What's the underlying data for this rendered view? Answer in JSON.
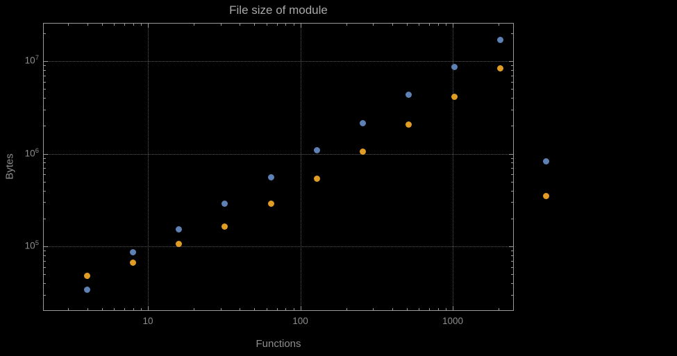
{
  "title": "File size of module",
  "colors": {
    "bg": "#000000",
    "title": "#a9a9a9",
    "axis-label": "#8e8e8e",
    "tick-label": "#8e8e8e",
    "frame": "#9b9b9b",
    "grid": "#5c5c5c",
    "series_blue": "#5E81B5",
    "series_orange": "#E19C24"
  },
  "axes": {
    "x": {
      "label": "Functions",
      "scale": "log",
      "ticks": [
        {
          "value": 10,
          "label": "10"
        },
        {
          "value": 100,
          "label": "100"
        },
        {
          "value": 1000,
          "label": "1000"
        }
      ]
    },
    "y": {
      "label": "Bytes",
      "scale": "log",
      "ticks": [
        {
          "value": 100000,
          "base": "10",
          "exp": "5"
        },
        {
          "value": 1000000,
          "base": "10",
          "exp": "6"
        },
        {
          "value": 10000000,
          "base": "10",
          "exp": "7"
        }
      ]
    }
  },
  "chart_data": {
    "type": "scatter",
    "title": "File size of module",
    "xlabel": "Functions",
    "ylabel": "Bytes",
    "x_scale": "log",
    "y_scale": "log",
    "xlim": [
      2.1,
      2500
    ],
    "ylim": [
      20000,
      26000000
    ],
    "grid": "dotted lines at decade values on both axes",
    "legend": "none",
    "series": [
      {
        "name": "series-blue",
        "color": "#5E81B5",
        "points": [
          [
            4,
            34000
          ],
          [
            8,
            86000
          ],
          [
            16,
            152000
          ],
          [
            32,
            290000
          ],
          [
            64,
            560000
          ],
          [
            128,
            1100000
          ],
          [
            256,
            2150000
          ],
          [
            512,
            4300000
          ],
          [
            1024,
            8700000
          ],
          [
            2048,
            17000000
          ],
          [
            4096,
            830000
          ]
        ]
      },
      {
        "name": "series-orange",
        "color": "#E19C24",
        "points": [
          [
            4,
            48000
          ],
          [
            8,
            67000
          ],
          [
            16,
            107000
          ],
          [
            32,
            165000
          ],
          [
            64,
            290000
          ],
          [
            128,
            540000
          ],
          [
            256,
            1050000
          ],
          [
            512,
            2050000
          ],
          [
            1024,
            4100000
          ],
          [
            2048,
            8300000
          ],
          [
            4096,
            350000
          ]
        ]
      }
    ]
  }
}
